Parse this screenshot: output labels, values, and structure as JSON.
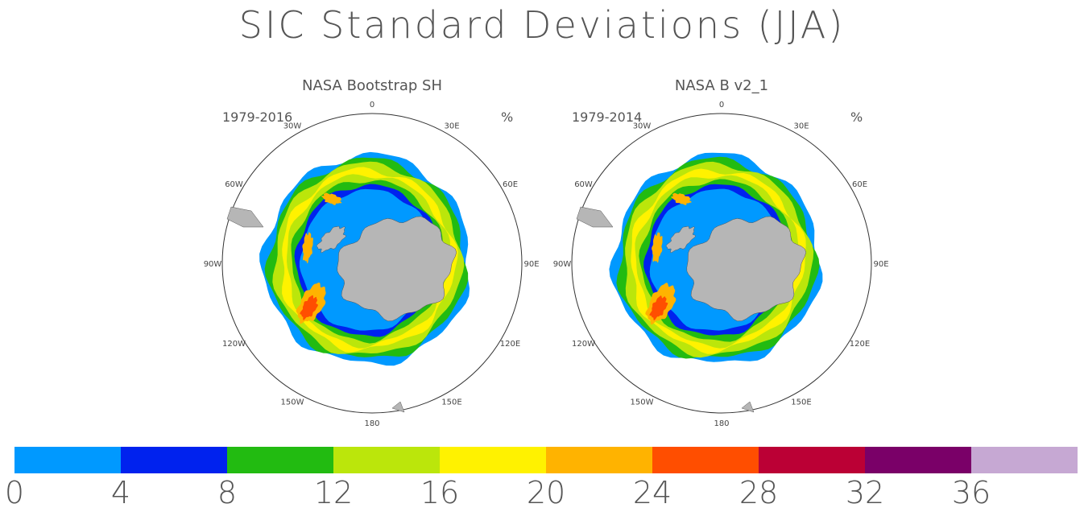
{
  "title": "SIC Standard Deviations (JJA)",
  "panels": [
    {
      "title": "NASA Bootstrap SH",
      "period": "1979-2016",
      "unit": "%"
    },
    {
      "title": "NASA B v2_1",
      "period": "1979-2014",
      "unit": "%"
    }
  ],
  "longitude_labels": [
    "0",
    "30E",
    "60E",
    "90E",
    "120E",
    "150E",
    "180",
    "150W",
    "120W",
    "90W",
    "60W",
    "30W"
  ],
  "colorbar": {
    "colors": [
      "#0099FF",
      "#0022EE",
      "#22BB11",
      "#BBE60B",
      "#FFF200",
      "#FFB300",
      "#FF4E00",
      "#BB0035",
      "#7A0068",
      "#C6A8D3"
    ],
    "tick_labels": [
      "0",
      "4",
      "8",
      "12",
      "16",
      "20",
      "24",
      "28",
      "32",
      "36"
    ]
  },
  "map_colors": {
    "land": "#B6B6B6",
    "ocean": "#FFFFFF",
    "ice_interior": "#0099FF"
  }
}
